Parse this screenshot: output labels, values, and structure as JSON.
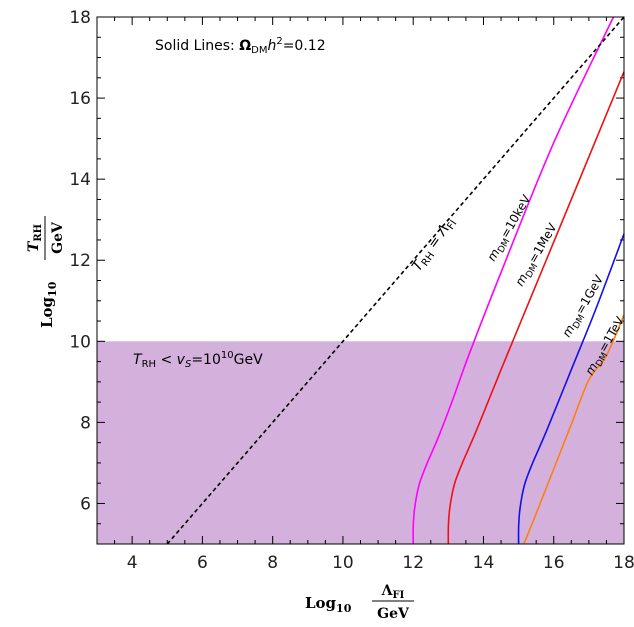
{
  "chart_data": {
    "type": "line",
    "title": "",
    "xlim": [
      3,
      18
    ],
    "ylim": [
      5,
      18
    ],
    "x_ticks": [
      "4",
      "6",
      "8",
      "10",
      "12",
      "14",
      "16",
      "18"
    ],
    "y_ticks": [
      "6",
      "8",
      "10",
      "12",
      "14",
      "16",
      "18"
    ],
    "xlabel": {
      "prefix": "Log",
      "sub": "10",
      "num": "Λ",
      "num_sub": "FI",
      "den": "GeV"
    },
    "ylabel": {
      "prefix": "Log",
      "sub": "10",
      "num": "T",
      "num_sub": "RH",
      "den": "GeV"
    },
    "annotation": {
      "pre": "Solid Lines: ",
      "omega": "Ω",
      "omega_sub": "DM",
      "h": "h",
      "h_sup": "2",
      "post": "=0.12"
    },
    "shaded_region": {
      "y_max": 10,
      "color": "#d4b0dc",
      "label": {
        "t": "T",
        "t_sub": "RH",
        "mid": " < ",
        "v": "v",
        "v_sub": "S",
        "eq": "=10",
        "eq_sup": "10",
        "unit": "GeV"
      }
    },
    "dashed_line": {
      "x": [
        5,
        18
      ],
      "y": [
        5,
        18
      ],
      "label": {
        "t": "T",
        "t_sub": "RH",
        "eq": " = ",
        "l": "Λ",
        "l_sub": "FI"
      }
    },
    "series": [
      {
        "label": {
          "m": "m",
          "m_sub": "DM",
          "val": "=10keV"
        },
        "color": "#ff00ff",
        "x": [
          12.0,
          12.0,
          12.03,
          12.1,
          12.2,
          12.4,
          12.7,
          13.1,
          13.6,
          14.5,
          16.0,
          17.7
        ],
        "y": [
          5.0,
          5.4,
          5.8,
          6.2,
          6.55,
          7.0,
          7.6,
          8.5,
          9.7,
          11.7,
          14.9,
          18.0
        ]
      },
      {
        "label": {
          "m": "m",
          "m_sub": "DM",
          "val": "=1MeV"
        },
        "color": "#ee1111",
        "x": [
          13.0,
          13.0,
          13.03,
          13.1,
          13.2,
          13.4,
          13.8,
          14.5,
          15.5,
          16.5,
          18.0
        ],
        "y": [
          5.0,
          5.4,
          5.8,
          6.2,
          6.55,
          7.0,
          7.8,
          9.3,
          11.4,
          13.5,
          16.65
        ]
      },
      {
        "label": {
          "m": "m",
          "m_sub": "DM",
          "val": "=1GeV"
        },
        "color": "#1010ee",
        "x": [
          15.0,
          15.0,
          15.03,
          15.1,
          15.2,
          15.4,
          15.8,
          16.5,
          17.2,
          18.0
        ],
        "y": [
          5.0,
          5.4,
          5.8,
          6.2,
          6.55,
          7.0,
          7.8,
          9.3,
          10.8,
          12.65
        ]
      },
      {
        "label": {
          "m": "m",
          "m_sub": "DM",
          "val": "=1TeV"
        },
        "color": "#ff7f0e",
        "x": [
          15.15,
          15.5,
          16.0,
          16.5,
          17.0,
          17.5,
          18.0
        ],
        "y": [
          5.0,
          5.75,
          6.85,
          7.95,
          9.05,
          9.65,
          10.65
        ]
      }
    ]
  }
}
